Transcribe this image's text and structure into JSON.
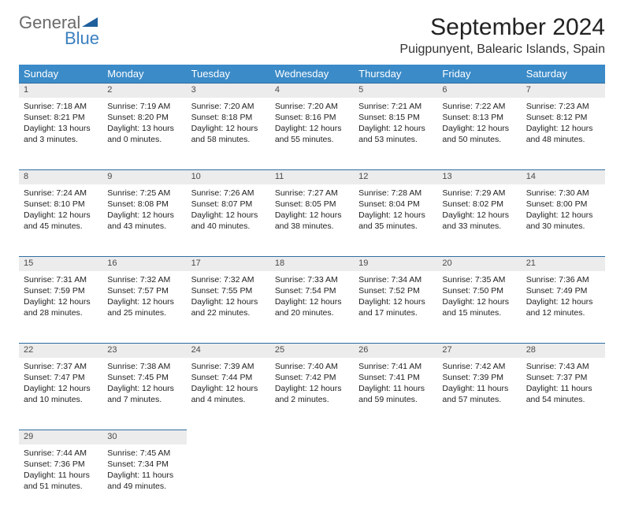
{
  "logo": {
    "text1": "General",
    "text2": "Blue"
  },
  "title": "September 2024",
  "location": "Puigpunyent, Balearic Islands, Spain",
  "colors": {
    "header_bg": "#3b8bc8",
    "header_fg": "#ffffff",
    "daynum_bg": "#ececec",
    "daynum_border": "#2f6fa3",
    "logo_gray": "#6a6a6a",
    "logo_blue": "#3a7fbf"
  },
  "weekdays": [
    "Sunday",
    "Monday",
    "Tuesday",
    "Wednesday",
    "Thursday",
    "Friday",
    "Saturday"
  ],
  "weeks": [
    [
      {
        "n": "1",
        "sr": "7:18 AM",
        "ss": "8:21 PM",
        "dl": "13 hours and 3 minutes."
      },
      {
        "n": "2",
        "sr": "7:19 AM",
        "ss": "8:20 PM",
        "dl": "13 hours and 0 minutes."
      },
      {
        "n": "3",
        "sr": "7:20 AM",
        "ss": "8:18 PM",
        "dl": "12 hours and 58 minutes."
      },
      {
        "n": "4",
        "sr": "7:20 AM",
        "ss": "8:16 PM",
        "dl": "12 hours and 55 minutes."
      },
      {
        "n": "5",
        "sr": "7:21 AM",
        "ss": "8:15 PM",
        "dl": "12 hours and 53 minutes."
      },
      {
        "n": "6",
        "sr": "7:22 AM",
        "ss": "8:13 PM",
        "dl": "12 hours and 50 minutes."
      },
      {
        "n": "7",
        "sr": "7:23 AM",
        "ss": "8:12 PM",
        "dl": "12 hours and 48 minutes."
      }
    ],
    [
      {
        "n": "8",
        "sr": "7:24 AM",
        "ss": "8:10 PM",
        "dl": "12 hours and 45 minutes."
      },
      {
        "n": "9",
        "sr": "7:25 AM",
        "ss": "8:08 PM",
        "dl": "12 hours and 43 minutes."
      },
      {
        "n": "10",
        "sr": "7:26 AM",
        "ss": "8:07 PM",
        "dl": "12 hours and 40 minutes."
      },
      {
        "n": "11",
        "sr": "7:27 AM",
        "ss": "8:05 PM",
        "dl": "12 hours and 38 minutes."
      },
      {
        "n": "12",
        "sr": "7:28 AM",
        "ss": "8:04 PM",
        "dl": "12 hours and 35 minutes."
      },
      {
        "n": "13",
        "sr": "7:29 AM",
        "ss": "8:02 PM",
        "dl": "12 hours and 33 minutes."
      },
      {
        "n": "14",
        "sr": "7:30 AM",
        "ss": "8:00 PM",
        "dl": "12 hours and 30 minutes."
      }
    ],
    [
      {
        "n": "15",
        "sr": "7:31 AM",
        "ss": "7:59 PM",
        "dl": "12 hours and 28 minutes."
      },
      {
        "n": "16",
        "sr": "7:32 AM",
        "ss": "7:57 PM",
        "dl": "12 hours and 25 minutes."
      },
      {
        "n": "17",
        "sr": "7:32 AM",
        "ss": "7:55 PM",
        "dl": "12 hours and 22 minutes."
      },
      {
        "n": "18",
        "sr": "7:33 AM",
        "ss": "7:54 PM",
        "dl": "12 hours and 20 minutes."
      },
      {
        "n": "19",
        "sr": "7:34 AM",
        "ss": "7:52 PM",
        "dl": "12 hours and 17 minutes."
      },
      {
        "n": "20",
        "sr": "7:35 AM",
        "ss": "7:50 PM",
        "dl": "12 hours and 15 minutes."
      },
      {
        "n": "21",
        "sr": "7:36 AM",
        "ss": "7:49 PM",
        "dl": "12 hours and 12 minutes."
      }
    ],
    [
      {
        "n": "22",
        "sr": "7:37 AM",
        "ss": "7:47 PM",
        "dl": "12 hours and 10 minutes."
      },
      {
        "n": "23",
        "sr": "7:38 AM",
        "ss": "7:45 PM",
        "dl": "12 hours and 7 minutes."
      },
      {
        "n": "24",
        "sr": "7:39 AM",
        "ss": "7:44 PM",
        "dl": "12 hours and 4 minutes."
      },
      {
        "n": "25",
        "sr": "7:40 AM",
        "ss": "7:42 PM",
        "dl": "12 hours and 2 minutes."
      },
      {
        "n": "26",
        "sr": "7:41 AM",
        "ss": "7:41 PM",
        "dl": "11 hours and 59 minutes."
      },
      {
        "n": "27",
        "sr": "7:42 AM",
        "ss": "7:39 PM",
        "dl": "11 hours and 57 minutes."
      },
      {
        "n": "28",
        "sr": "7:43 AM",
        "ss": "7:37 PM",
        "dl": "11 hours and 54 minutes."
      }
    ],
    [
      {
        "n": "29",
        "sr": "7:44 AM",
        "ss": "7:36 PM",
        "dl": "11 hours and 51 minutes."
      },
      {
        "n": "30",
        "sr": "7:45 AM",
        "ss": "7:34 PM",
        "dl": "11 hours and 49 minutes."
      },
      null,
      null,
      null,
      null,
      null
    ]
  ],
  "labels": {
    "sunrise": "Sunrise:",
    "sunset": "Sunset:",
    "daylight": "Daylight:"
  }
}
